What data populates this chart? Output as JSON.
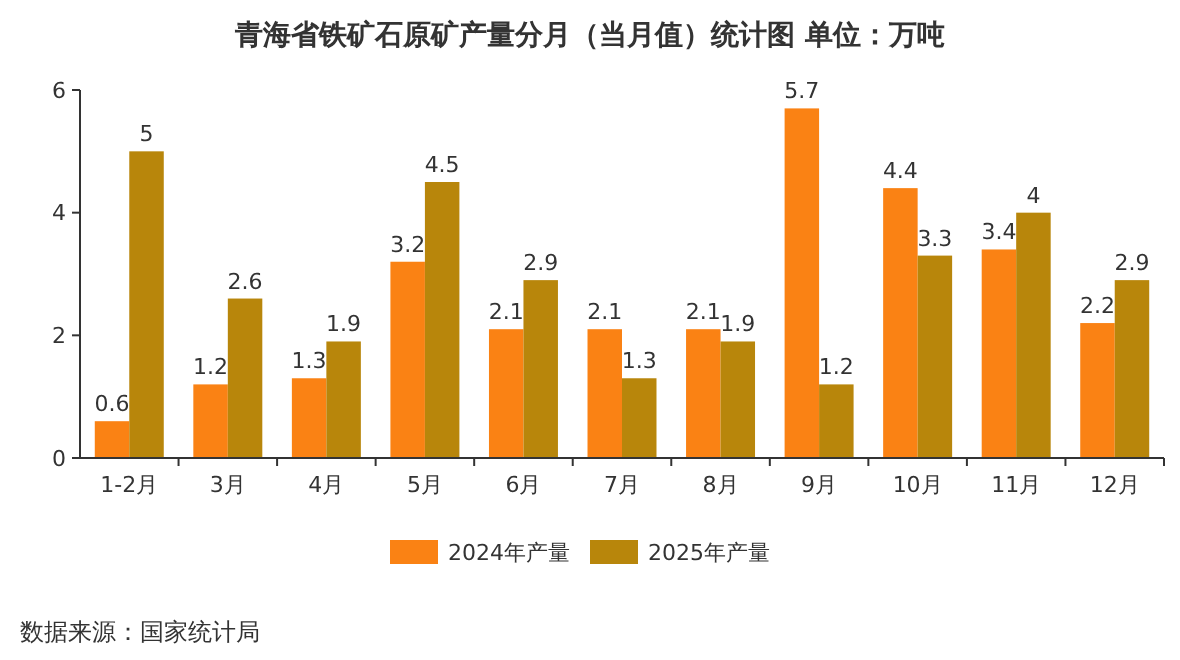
{
  "chart_data": {
    "type": "bar",
    "title": "青海省铁矿石原矿产量分月（当月值）统计图 单位：万吨",
    "categories": [
      "1-2月",
      "3月",
      "4月",
      "5月",
      "6月",
      "7月",
      "8月",
      "9月",
      "10月",
      "11月",
      "12月"
    ],
    "series": [
      {
        "name": "2024年产量",
        "color": "#fa8214",
        "values": [
          0.6,
          1.2,
          1.3,
          3.2,
          2.1,
          2.1,
          2.1,
          5.7,
          4.4,
          3.4,
          2.2
        ]
      },
      {
        "name": "2025年产量",
        "color": "#b8860b",
        "values": [
          5,
          2.6,
          1.9,
          4.5,
          2.9,
          1.3,
          1.9,
          1.2,
          3.3,
          4,
          2.9
        ]
      }
    ],
    "ylim": [
      0,
      6
    ],
    "yticks": [
      0,
      2,
      4,
      6
    ],
    "data_labels": true,
    "legend": "bottom",
    "annotations": [
      "数据来源：国家统计局"
    ]
  }
}
